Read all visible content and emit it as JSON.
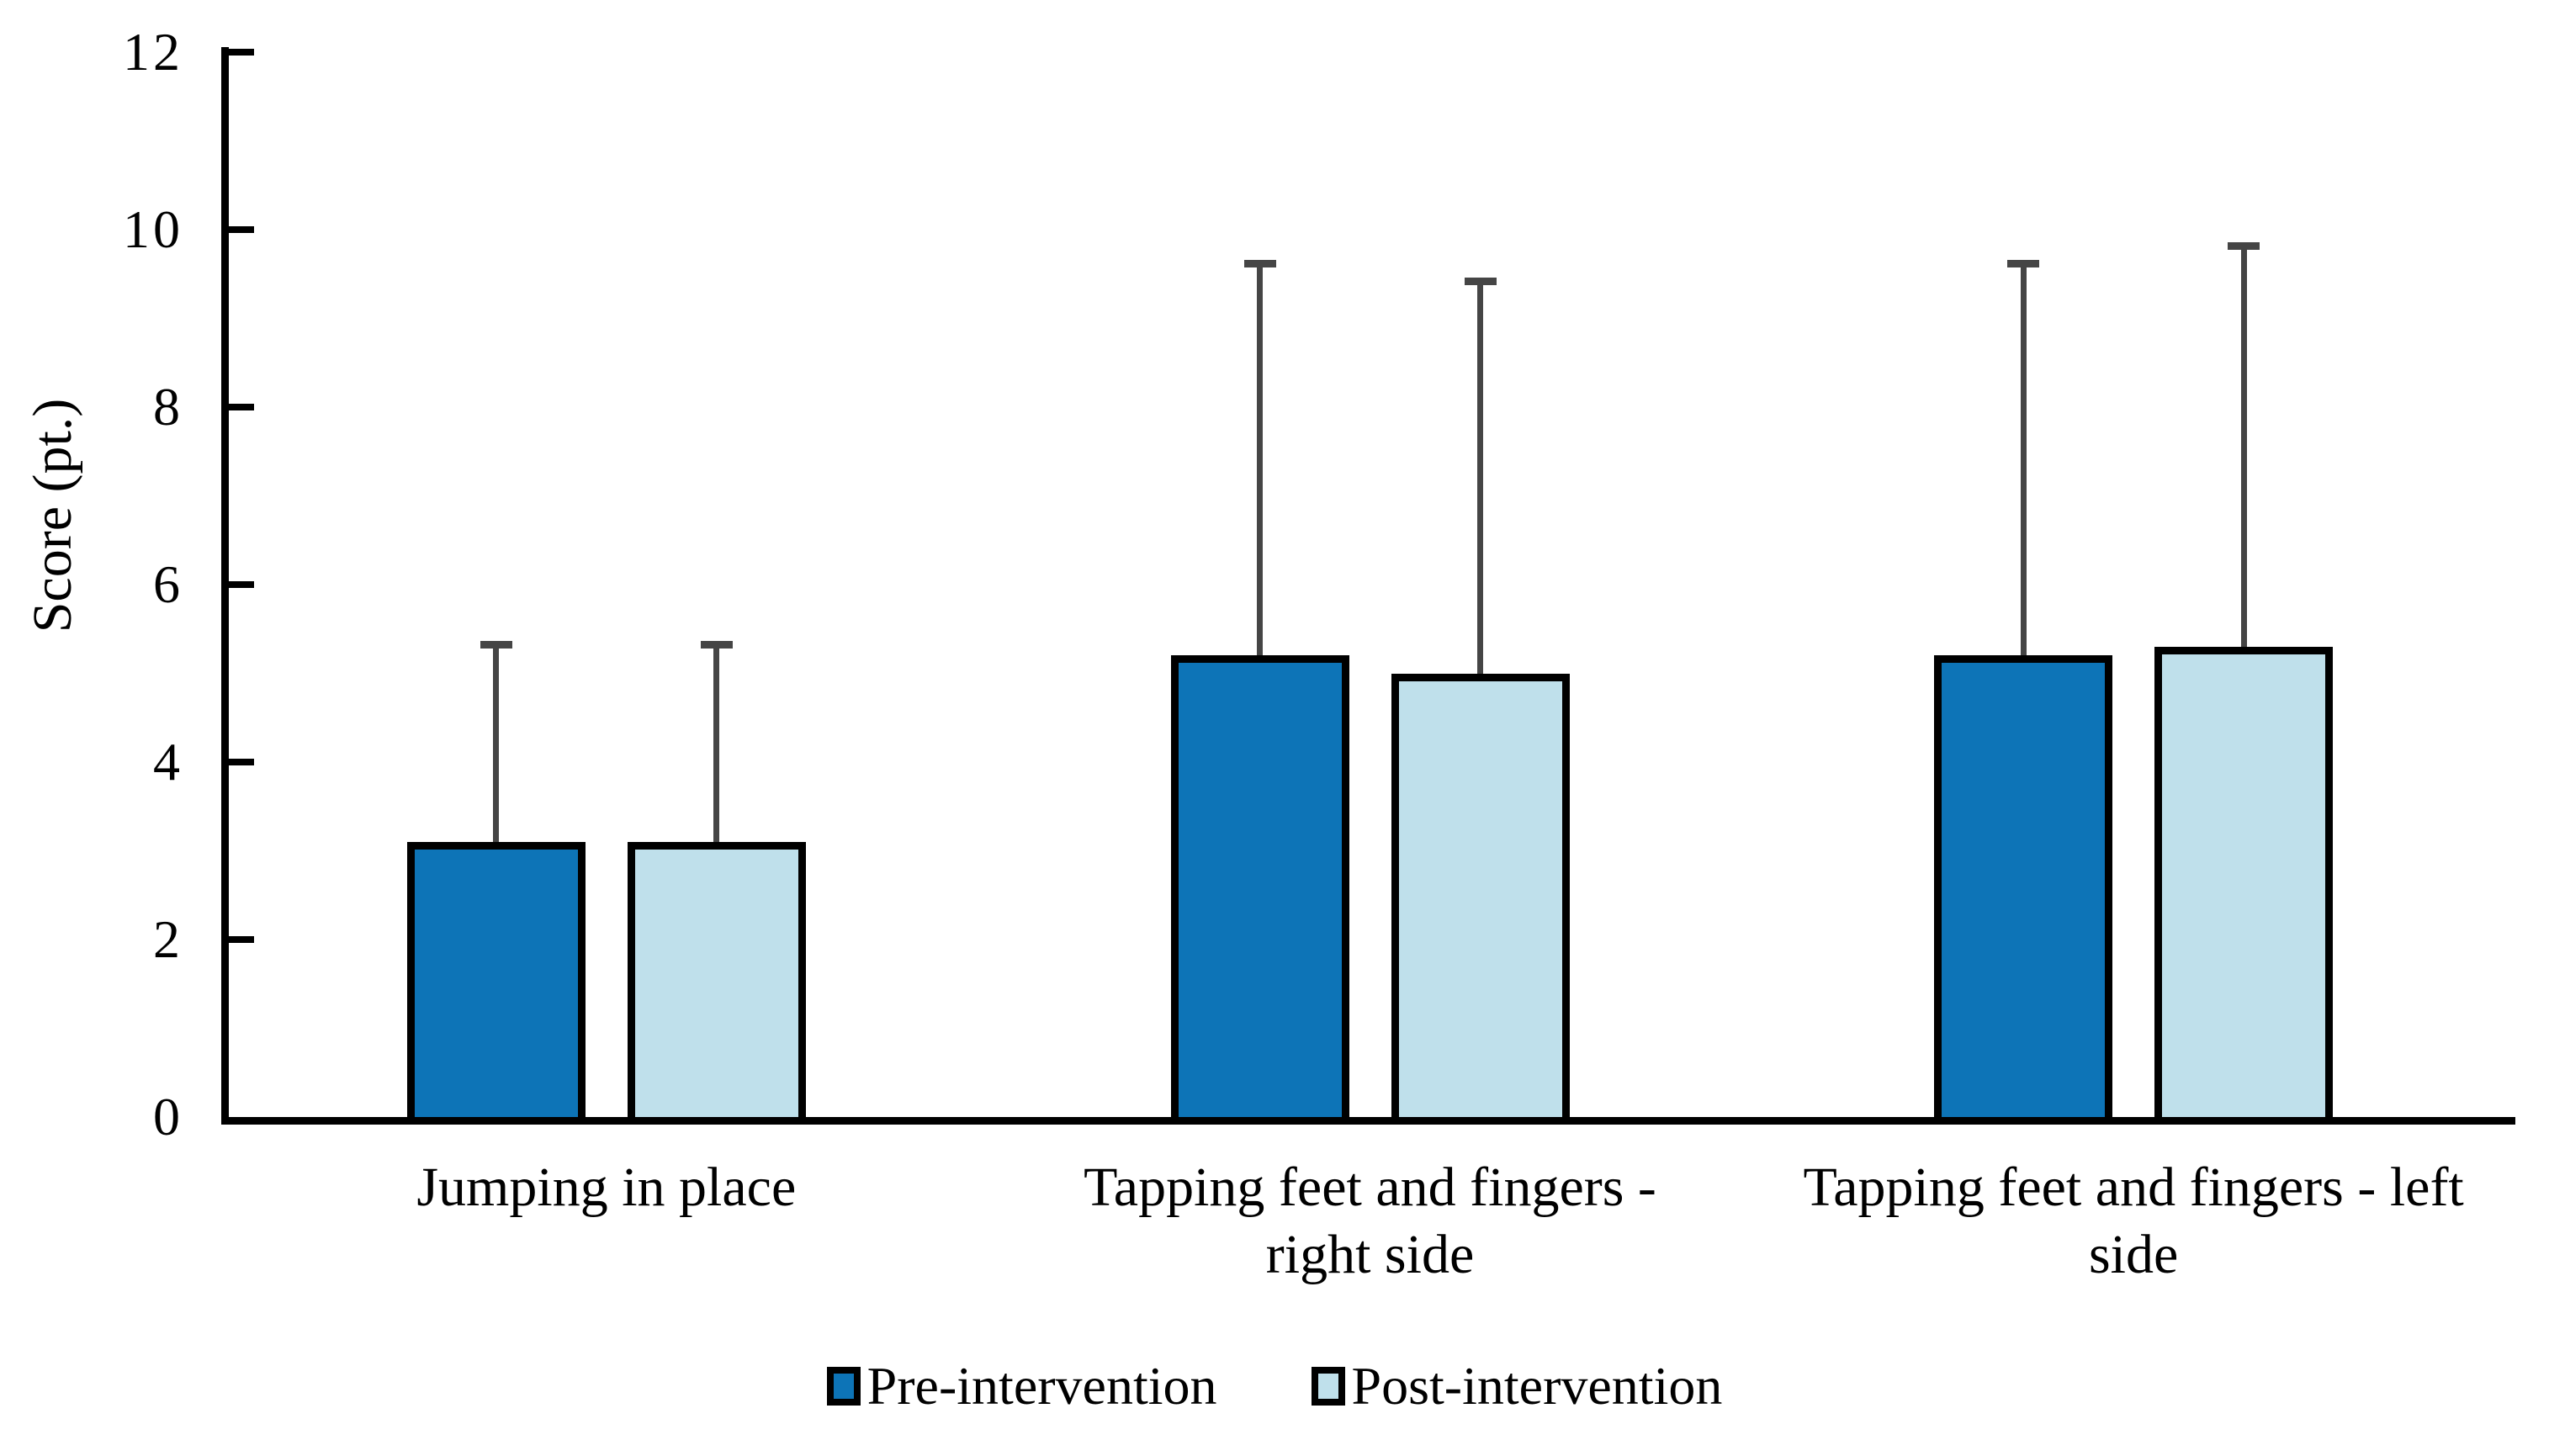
{
  "figure": {
    "background": "#ffffff",
    "text_color": "#000000"
  },
  "chart_data": {
    "type": "bar",
    "title": "",
    "xlabel": "",
    "ylabel": "Score (pt.)",
    "ylim": [
      0,
      12
    ],
    "yticks": [
      0,
      2,
      4,
      6,
      8,
      10,
      12
    ],
    "grid": false,
    "legend_position": "bottom-center",
    "axis_color": "#000000",
    "bar_border_color": "#000000",
    "error_bar_color": "#454545",
    "error_bars": "upper-only",
    "categories": [
      "Jumping in place",
      "Tapping feet and fingers -\nright side",
      "Tapping feet and fingers - left\nside"
    ],
    "series": [
      {
        "name": "Pre-intervention",
        "color": "#0d74b7",
        "values": [
          3.1,
          5.2,
          5.2
        ],
        "sd_upper": [
          2.3,
          4.5,
          4.5
        ]
      },
      {
        "name": "Post-intervention",
        "color": "#bfe0eb",
        "values": [
          3.1,
          5.0,
          5.3
        ],
        "sd_upper": [
          2.3,
          4.5,
          4.6
        ]
      }
    ]
  }
}
